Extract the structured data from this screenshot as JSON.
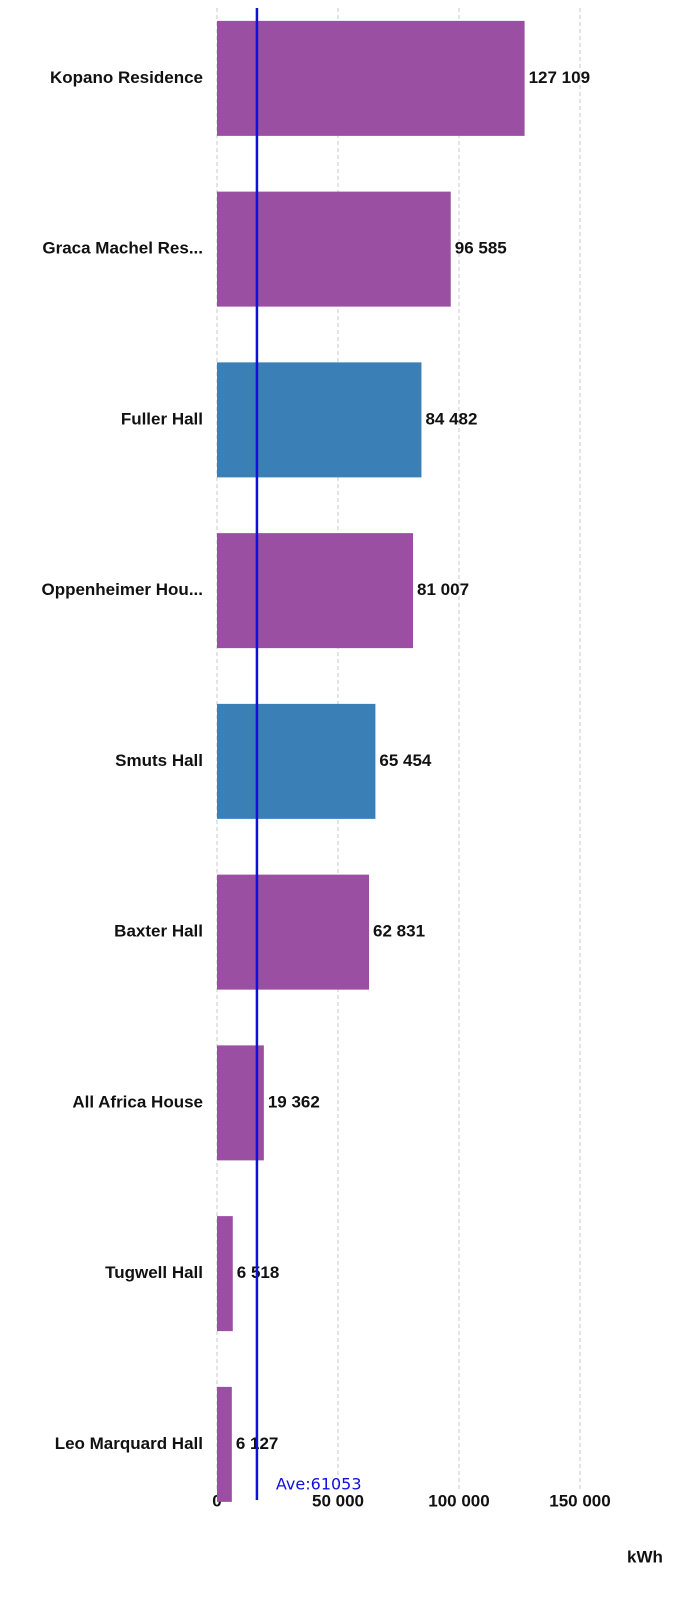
{
  "chart_data": {
    "type": "hbar",
    "categories": [
      "Kopano Residence",
      "Graca Machel Res...",
      "Fuller Hall",
      "Oppenheimer Hou...",
      "Smuts Hall",
      "Baxter Hall",
      "All Africa House",
      "Tugwell Hall",
      "Leo Marquard Hall"
    ],
    "values": [
      127109,
      96585,
      84482,
      81007,
      65454,
      62831,
      19362,
      6518,
      6127
    ],
    "value_labels": [
      "127 109",
      "96 585",
      "84 482",
      "81 007",
      "65 454",
      "62 831",
      "19 362",
      "6 518",
      "6 127"
    ],
    "colors": [
      "#9a4fa2",
      "#9a4fa2",
      "#3a7fb6",
      "#9a4fa2",
      "#3a7fb6",
      "#9a4fa2",
      "#9a4fa2",
      "#9a4fa2",
      "#9a4fa2"
    ],
    "xlim": [
      0,
      150000
    ],
    "xticks": [
      0,
      {
        "value": 50000,
        "label": "50 000"
      },
      {
        "value": 100000,
        "label": "100 000"
      },
      {
        "value": 150000,
        "label": "150 000"
      }
    ],
    "x_axis_label": "kWh",
    "grid": true,
    "reference_line": {
      "x": 16500,
      "color": "#1010dd"
    },
    "annotation": "Ave:61053"
  }
}
